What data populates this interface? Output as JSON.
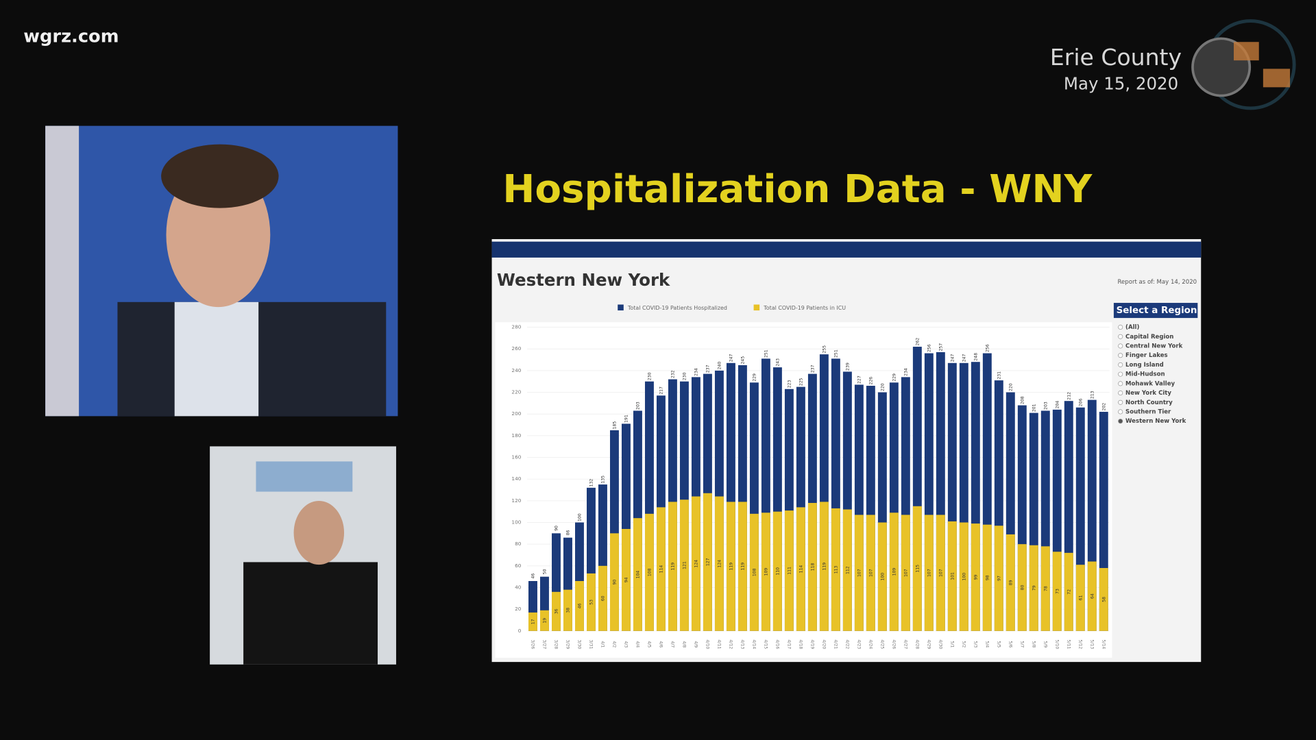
{
  "header": {
    "site": "wgrz.com",
    "county": "Erie County",
    "date": "May 15, 2020"
  },
  "slide_title": "Hospitalization Data - WNY",
  "report_date": "Report as of: May 14, 2020",
  "region_filter": {
    "title": "Select a Region",
    "options": [
      "(All)",
      "Capital Region",
      "Central New York",
      "Finger Lakes",
      "Long Island",
      "Mid-Hudson",
      "Mohawk Valley",
      "New York City",
      "North Country",
      "Southern Tier",
      "Western New York"
    ],
    "selected": "Western New York"
  },
  "chart_data": {
    "type": "bar",
    "title": "Western New York",
    "categories": [
      "3/26",
      "3/27",
      "3/28",
      "3/29",
      "3/30",
      "3/31",
      "4/1",
      "4/2",
      "4/3",
      "4/4",
      "4/5",
      "4/6",
      "4/7",
      "4/8",
      "4/9",
      "4/10",
      "4/11",
      "4/12",
      "4/13",
      "4/14",
      "4/15",
      "4/16",
      "4/17",
      "4/18",
      "4/19",
      "4/20",
      "4/21",
      "4/22",
      "4/23",
      "4/24",
      "4/25",
      "4/26",
      "4/27",
      "4/28",
      "4/29",
      "4/30",
      "5/1",
      "5/2",
      "5/3",
      "5/4",
      "5/5",
      "5/6",
      "5/7",
      "5/8",
      "5/9",
      "5/10",
      "5/11",
      "5/12",
      "5/13",
      "5/14"
    ],
    "series": [
      {
        "name": "Total COVID-19 Patients Hospitalized",
        "color": "#1b3a7a",
        "values": [
          46,
          50,
          90,
          86,
          100,
          132,
          135,
          185,
          191,
          203,
          230,
          217,
          232,
          230,
          234,
          237,
          240,
          247,
          245,
          229,
          251,
          243,
          223,
          225,
          237,
          255,
          251,
          239,
          227,
          226,
          220,
          229,
          234,
          262,
          256,
          257,
          247,
          247,
          248,
          256,
          231,
          220,
          208,
          201,
          203,
          204,
          212,
          206,
          213,
          202
        ]
      },
      {
        "name": "Total COVID-19 Patients in ICU",
        "color": "#e8c228",
        "values": [
          17,
          19,
          36,
          38,
          46,
          53,
          60,
          90,
          94,
          104,
          108,
          114,
          119,
          121,
          124,
          127,
          124,
          119,
          119,
          108,
          109,
          110,
          111,
          114,
          118,
          119,
          113,
          112,
          107,
          107,
          100,
          109,
          107,
          115,
          107,
          107,
          101,
          100,
          99,
          98,
          97,
          89,
          80,
          79,
          78,
          73,
          72,
          61,
          64,
          58
        ]
      }
    ],
    "ylim": [
      0,
      280
    ],
    "yticks": [
      0,
      20,
      40,
      60,
      80,
      100,
      120,
      140,
      160,
      180,
      200,
      220,
      240,
      260,
      280
    ],
    "grid": true
  }
}
